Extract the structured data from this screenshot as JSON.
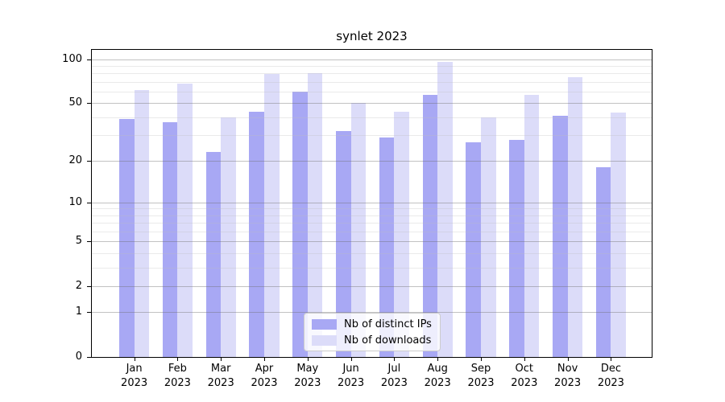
{
  "title": "synlet 2023",
  "legend": {
    "items": [
      {
        "label": "Nb of distinct IPs"
      },
      {
        "label": "Nb of downloads"
      }
    ]
  },
  "chart_data": {
    "type": "bar",
    "title": "synlet 2023",
    "yscale": "symlog-log1p",
    "categories": [
      "Jan",
      "Feb",
      "Mar",
      "Apr",
      "May",
      "Jun",
      "Jul",
      "Aug",
      "Sep",
      "Oct",
      "Nov",
      "Dec"
    ],
    "category_year": "2023",
    "series": [
      {
        "name": "Nb of distinct IPs",
        "key": "distinct-ips",
        "color": "#a8a8f4",
        "values": [
          39,
          37,
          23,
          44,
          60,
          32,
          29,
          57,
          27,
          28,
          41,
          18
        ]
      },
      {
        "name": "Nb of downloads",
        "key": "downloads",
        "color": "#dcdcf9",
        "values": [
          62,
          68,
          40,
          79,
          80,
          50,
          44,
          96,
          40,
          57,
          75,
          43
        ]
      }
    ],
    "yticks_major": [
      0,
      1,
      2,
      5,
      10,
      20,
      50,
      100
    ],
    "yticks_minor": [
      3,
      4,
      6,
      7,
      8,
      9,
      30,
      40,
      60,
      70,
      80,
      90
    ],
    "ylim": [
      0,
      118
    ],
    "grid": true,
    "legend_position": "lower center",
    "xlabel": "",
    "ylabel": ""
  }
}
